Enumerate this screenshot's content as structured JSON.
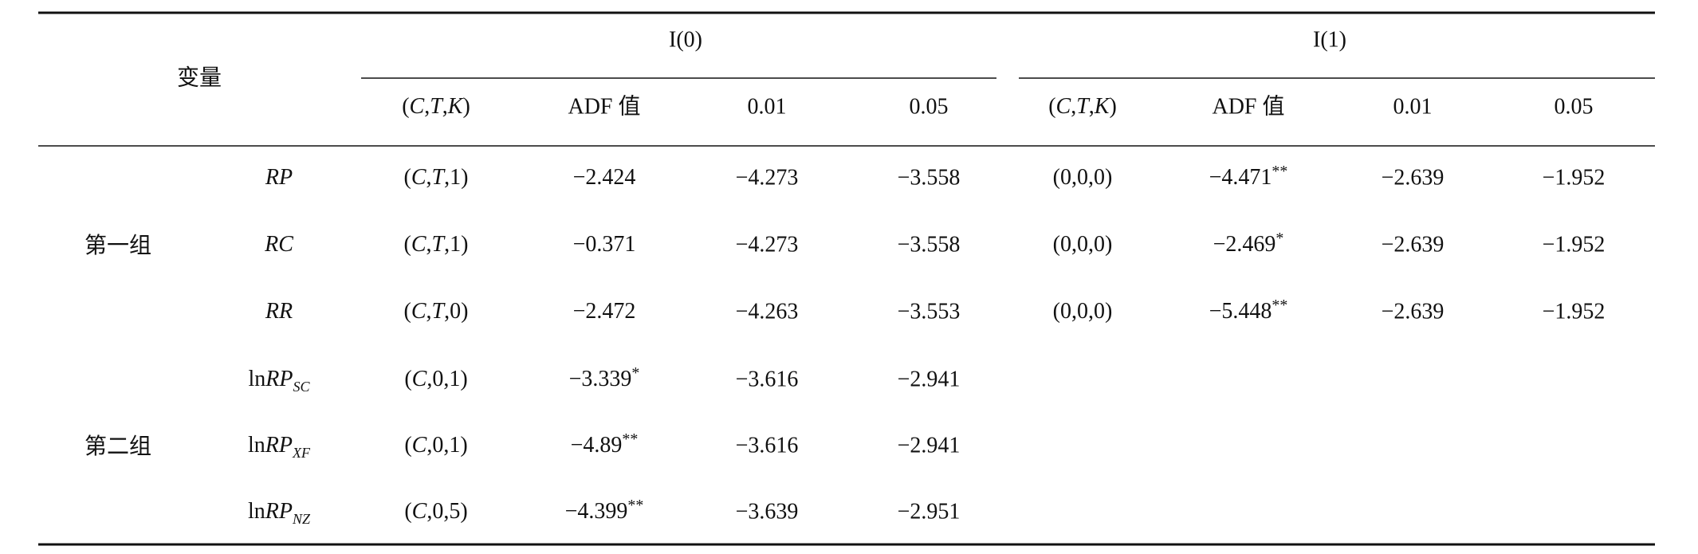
{
  "header": {
    "variable": "变量",
    "groups": [
      {
        "title": "I(0)",
        "columns": [
          "(C,T,K)",
          "ADF 值",
          "0.01",
          "0.05"
        ]
      },
      {
        "title": "I(1)",
        "columns": [
          "(C,T,K)",
          "ADF 值",
          "0.01",
          "0.05"
        ]
      }
    ]
  },
  "table": {
    "groups": [
      {
        "label": "第一组",
        "rows": [
          {
            "variable": {
              "name": "RP"
            },
            "cells": [
              "(C,T,1)",
              {
                "text": "−2.424"
              },
              "−4.273",
              "−3.558",
              "(0,0,0)",
              {
                "text": "−4.471",
                "sig": "**"
              },
              "−2.639",
              "−1.952"
            ]
          },
          {
            "variable": {
              "name": "RC"
            },
            "cells": [
              "(C,T,1)",
              {
                "text": "−0.371"
              },
              "−4.273",
              "−3.558",
              "(0,0,0)",
              {
                "text": "−2.469",
                "sig": "*"
              },
              "−2.639",
              "−1.952"
            ]
          },
          {
            "variable": {
              "name": "RR"
            },
            "cells": [
              "(C,T,0)",
              {
                "text": "−2.472"
              },
              "−4.263",
              "−3.553",
              "(0,0,0)",
              {
                "text": "−5.448",
                "sig": "**"
              },
              "−2.639",
              "−1.952"
            ]
          }
        ]
      },
      {
        "label": "第二组",
        "rows": [
          {
            "variable": {
              "prefix": "ln",
              "name": "RP",
              "sub": "SC"
            },
            "cells": [
              "(C,0,1)",
              {
                "text": "−3.339",
                "sig": "*"
              },
              "−3.616",
              "−2.941"
            ]
          },
          {
            "variable": {
              "prefix": "ln",
              "name": "RP",
              "sub": "XF"
            },
            "cells": [
              "(C,0,1)",
              {
                "text": "−4.89",
                "sig": "**"
              },
              "−3.616",
              "−2.941"
            ]
          },
          {
            "variable": {
              "prefix": "ln",
              "name": "RP",
              "sub": "NZ"
            },
            "cells": [
              "(C,0,5)",
              {
                "text": "−4.399",
                "sig": "**"
              },
              "−3.639",
              "−2.951"
            ]
          }
        ]
      }
    ]
  }
}
